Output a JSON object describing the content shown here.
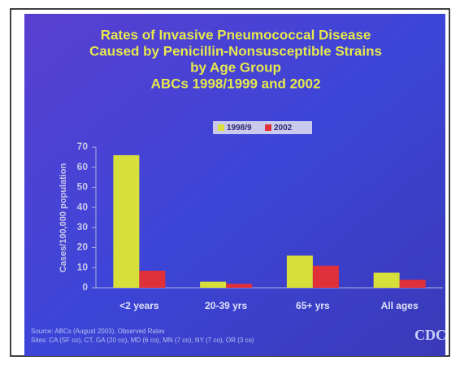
{
  "chart_data": {
    "type": "bar",
    "title": [
      "Rates of Invasive Pneumococcal Disease",
      "Caused by Penicillin-Nonsusceptible Strains",
      "by Age Group",
      "ABCs 1998/1999 and 2002"
    ],
    "y_label": "Cases/100,000 population",
    "categories": [
      "<2 years",
      "20-39 yrs",
      "65+ yrs",
      "All ages"
    ],
    "series": [
      {
        "name": "1998/9",
        "color": "#d7e03a",
        "values": [
          66,
          3,
          16,
          7.5
        ]
      },
      {
        "name": "2002",
        "color": "#e0303a",
        "values": [
          8.5,
          2,
          11,
          4
        ]
      }
    ],
    "ylim": [
      0,
      70
    ],
    "yticks": [
      0,
      10,
      20,
      30,
      40,
      50,
      60,
      70
    ],
    "source": [
      "Source: ABCs (August 2003), Observed Rates",
      "Sites: CA (SF co), CT, GA (20 co), MD (6 co), MN (7 co), NY (7 co), OR (3 co)"
    ],
    "logo": "CDC"
  }
}
